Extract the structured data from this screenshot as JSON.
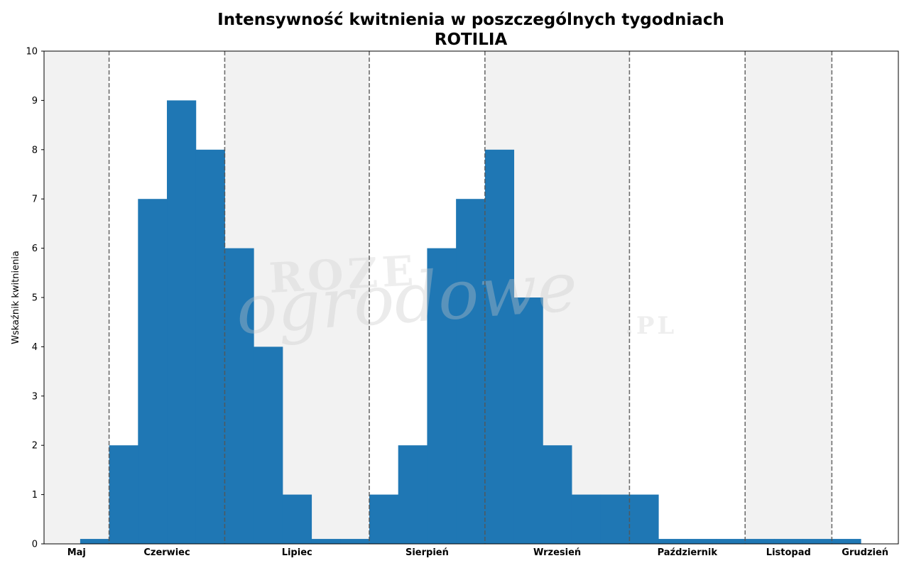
{
  "chart_data": {
    "type": "bar",
    "title": "Intensywność kwitnienia w poszczególnych tygodniach",
    "subtitle": "ROTILIA",
    "xlabel": "",
    "ylabel": "Wskaźnik kwitnienia",
    "ylim": [
      0,
      10
    ],
    "yticks": [
      "0",
      "1",
      "2",
      "3",
      "4",
      "5",
      "6",
      "7",
      "8",
      "9",
      "10"
    ],
    "xlim": [
      -1.25,
      28.3
    ],
    "week_start": 0,
    "values": [
      0.1,
      2,
      7,
      9,
      8,
      6,
      4,
      1,
      0.1,
      0.1,
      1,
      2,
      6,
      7,
      8,
      5,
      2,
      1,
      1,
      1,
      0.1,
      0.1,
      0.1,
      0.1,
      0.1,
      0.1,
      0.1
    ],
    "months": [
      {
        "label": "Maj",
        "start": -1.25,
        "end": 1,
        "shaded": true
      },
      {
        "label": "Czerwiec",
        "start": 1,
        "end": 5,
        "shaded": false
      },
      {
        "label": "Lipiec",
        "start": 5,
        "end": 10,
        "shaded": true
      },
      {
        "label": "Sierpień",
        "start": 10,
        "end": 14,
        "shaded": false
      },
      {
        "label": "Wrzesień",
        "start": 14,
        "end": 19,
        "shaded": true
      },
      {
        "label": "Październik",
        "start": 19,
        "end": 23,
        "shaded": false
      },
      {
        "label": "Listopad",
        "start": 23,
        "end": 26,
        "shaded": true
      },
      {
        "label": "Grudzień",
        "start": 26,
        "end": 28.3,
        "shaded": false
      }
    ],
    "bar_color": "#1f77b4",
    "shade_color": "#f2f2f2",
    "divider_color": "#555555",
    "grid": false,
    "legend": "none"
  },
  "watermark": {
    "line1": "ROZE",
    "line2": "ogrodowe",
    "line3": ".PL"
  }
}
